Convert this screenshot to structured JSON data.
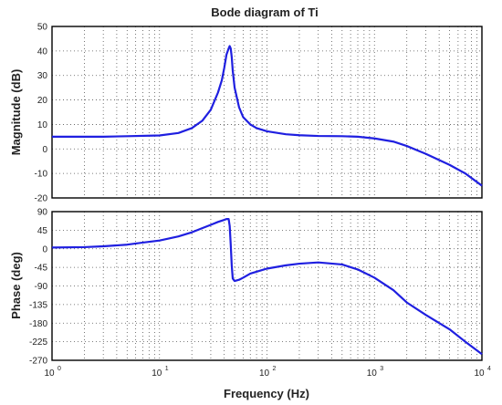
{
  "chart_data": [
    {
      "type": "line",
      "title": "Bode diagram of Ti",
      "xlabel": "Frequency  (Hz)",
      "ylabel": "Magnitude (dB)",
      "xscale": "log",
      "xlim": [
        1,
        10000
      ],
      "ylim": [
        -20,
        50
      ],
      "yticks": [
        -20,
        -10,
        0,
        10,
        20,
        30,
        40,
        50
      ],
      "xticks": [
        {
          "base": "10",
          "exp": "0"
        },
        {
          "base": "10",
          "exp": "1"
        },
        {
          "base": "10",
          "exp": "2"
        },
        {
          "base": "10",
          "exp": "3"
        },
        {
          "base": "10",
          "exp": "4"
        }
      ],
      "show_xtick_labels": false,
      "grid": true,
      "color": "#1f1fe0",
      "series": [
        {
          "x": [
            1,
            2,
            3,
            5,
            10,
            15,
            20,
            25,
            30,
            35,
            38,
            40,
            42,
            44,
            45,
            46,
            47,
            48,
            50,
            55,
            60,
            70,
            80,
            100,
            150,
            200,
            300,
            500,
            700,
            1000,
            1500,
            2000,
            3000,
            5000,
            7000,
            10000
          ],
          "y": [
            5,
            5,
            5,
            5.2,
            5.5,
            6.5,
            8.5,
            11.5,
            16,
            23,
            28,
            33,
            38.5,
            41,
            42,
            41,
            37.5,
            32,
            25,
            17,
            13,
            10,
            8.5,
            7.2,
            6,
            5.6,
            5.3,
            5.2,
            5,
            4.3,
            3,
            1.2,
            -2,
            -6.5,
            -10,
            -15
          ]
        }
      ]
    },
    {
      "type": "line",
      "xlabel": "Frequency  (Hz)",
      "ylabel": "Phase (deg)",
      "xscale": "log",
      "xlim": [
        1,
        10000
      ],
      "ylim": [
        -270,
        90
      ],
      "yticks": [
        -270,
        -225,
        -180,
        -135,
        -90,
        -45,
        0,
        45,
        90
      ],
      "xticks": [
        {
          "base": "10",
          "exp": "0"
        },
        {
          "base": "10",
          "exp": "1"
        },
        {
          "base": "10",
          "exp": "2"
        },
        {
          "base": "10",
          "exp": "3"
        },
        {
          "base": "10",
          "exp": "4"
        }
      ],
      "show_xtick_labels": true,
      "grid": true,
      "color": "#1f1fe0",
      "series": [
        {
          "x": [
            1,
            2,
            3,
            5,
            7,
            10,
            15,
            20,
            25,
            30,
            35,
            40,
            42,
            44,
            45,
            46,
            47,
            48,
            50,
            55,
            60,
            70,
            100,
            150,
            200,
            300,
            500,
            700,
            1000,
            1500,
            2000,
            3000,
            5000,
            7000,
            10000
          ],
          "y": [
            3,
            4,
            6,
            10,
            15,
            20,
            30,
            40,
            50,
            58,
            65,
            70,
            72,
            72,
            55,
            10,
            -40,
            -72,
            -78,
            -75,
            -70,
            -60,
            -48,
            -40,
            -36,
            -33,
            -38,
            -50,
            -70,
            -100,
            -130,
            -160,
            -195,
            -225,
            -255
          ]
        }
      ]
    }
  ]
}
